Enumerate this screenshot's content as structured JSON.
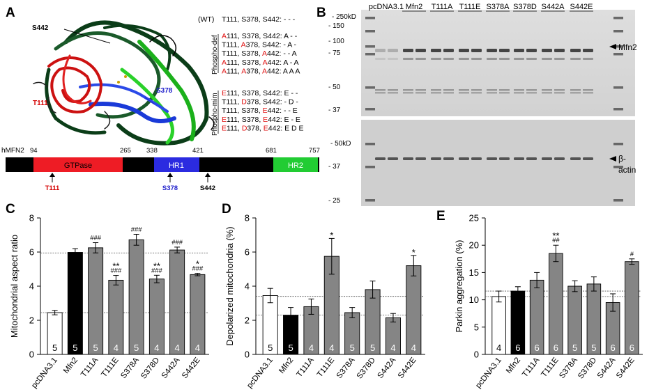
{
  "panelA": {
    "label": "A",
    "structure_labels": {
      "s442": "S442",
      "t111": "T111",
      "s378": "S378"
    },
    "wt": {
      "tag": "(WT)",
      "text": "T111, S378, S442: - - -"
    },
    "phospho_def": {
      "group_label": "Phospho-def",
      "rows": [
        [
          [
            "A",
            "r"
          ],
          [
            "111, S378, S442: A - -",
            "k"
          ]
        ],
        [
          [
            "T111, ",
            "k"
          ],
          [
            "A",
            "r"
          ],
          [
            "378, S442: - A -",
            "k"
          ]
        ],
        [
          [
            "T111, S378, ",
            "k"
          ],
          [
            "A",
            "r"
          ],
          [
            "442: - - A",
            "k"
          ]
        ],
        [
          [
            "A",
            "r"
          ],
          [
            "111, S378, ",
            "k"
          ],
          [
            "A",
            "r"
          ],
          [
            "442: A - A",
            "k"
          ]
        ],
        [
          [
            "A",
            "r"
          ],
          [
            "111, ",
            "k"
          ],
          [
            "A",
            "r"
          ],
          [
            "378, ",
            "k"
          ],
          [
            "A",
            "r"
          ],
          [
            "442: A A A",
            "k"
          ]
        ]
      ]
    },
    "phospho_mim": {
      "group_label": "Phospho-mim",
      "rows": [
        [
          [
            "E",
            "r"
          ],
          [
            "111, S378, S442: E - -",
            "k"
          ]
        ],
        [
          [
            "T111, ",
            "k"
          ],
          [
            "D",
            "r"
          ],
          [
            "378, S442: - D -",
            "k"
          ]
        ],
        [
          [
            "T111, S378, ",
            "k"
          ],
          [
            "E",
            "r"
          ],
          [
            "442: - - E",
            "k"
          ]
        ],
        [
          [
            "E",
            "r"
          ],
          [
            "111, S378, ",
            "k"
          ],
          [
            "E",
            "r"
          ],
          [
            "442: E - E",
            "k"
          ]
        ],
        [
          [
            "E",
            "r"
          ],
          [
            "111, ",
            "k"
          ],
          [
            "D",
            "r"
          ],
          [
            "378, ",
            "k"
          ],
          [
            "E",
            "r"
          ],
          [
            "442: E D E",
            "k"
          ]
        ]
      ]
    },
    "domain_map": {
      "protein": "hMFN2",
      "positions": [
        "94",
        "265",
        "338",
        "421",
        "681",
        "757"
      ],
      "domains": [
        {
          "name": "GTPase",
          "color": "#ee1c25"
        },
        {
          "name": "HR1",
          "color": "#2b2be0"
        },
        {
          "name": "HR2",
          "color": "#22cc33"
        }
      ],
      "sites": [
        "T111",
        "S378",
        "S442"
      ],
      "site_colors": [
        "#d40000",
        "#2222cc",
        "#000000"
      ]
    }
  },
  "panelB": {
    "label": "B",
    "lanes": [
      "pcDNA3.1",
      "Mfn2",
      "T111A",
      "T111E",
      "S378A",
      "S378D",
      "S442A",
      "S442E"
    ],
    "markers_top": [
      "250kD",
      "150",
      "100",
      "75",
      "50",
      "37"
    ],
    "markers_bottom": [
      "50kD",
      "37",
      "25"
    ],
    "band_top": "Mfn2",
    "band_bottom_line1": "β-",
    "band_bottom_line2": "actin"
  },
  "chart_data": [
    {
      "panel": "C",
      "type": "bar",
      "title": "",
      "ylabel": "Mitochondrial aspect ratio",
      "ylim": [
        0,
        8
      ],
      "yticks": [
        "0",
        "2",
        "4",
        "6",
        "8"
      ],
      "categories": [
        "pcDNA3.1",
        "Mfn2",
        "T111A",
        "T111E",
        "S378A",
        "S378D",
        "S442A",
        "S442E"
      ],
      "values": [
        2.45,
        5.98,
        6.25,
        4.35,
        6.72,
        4.42,
        6.12,
        4.68
      ],
      "errors": [
        0.13,
        0.22,
        0.3,
        0.28,
        0.32,
        0.22,
        0.17,
        0.07
      ],
      "n": [
        "5",
        "5",
        "5",
        "4",
        "5",
        "4",
        "4",
        "4"
      ],
      "sig_star": [
        "",
        "",
        "",
        "**",
        "",
        "**",
        "",
        "*"
      ],
      "sig_hash": [
        "",
        "",
        "###",
        "###",
        "###",
        "###",
        "###",
        "###"
      ],
      "reference_lines": [
        2.45,
        5.95
      ],
      "fills": [
        "#ffffff",
        "#000000",
        "#858585",
        "#858585",
        "#858585",
        "#858585",
        "#858585",
        "#858585"
      ]
    },
    {
      "panel": "D",
      "type": "bar",
      "title": "",
      "ylabel": "Depolarized mitochondria (%)",
      "ylim": [
        0,
        8
      ],
      "yticks": [
        "0",
        "2",
        "4",
        "6",
        "8"
      ],
      "categories": [
        "pcDNA3.1",
        "Mfn2",
        "T111A",
        "T111E",
        "S378A",
        "S378D",
        "S442A",
        "S442E"
      ],
      "values": [
        3.45,
        2.3,
        2.8,
        5.75,
        2.45,
        3.8,
        2.15,
        5.2
      ],
      "errors": [
        0.42,
        0.45,
        0.45,
        1.05,
        0.3,
        0.5,
        0.25,
        0.6
      ],
      "n": [
        "5",
        "5",
        "4",
        "4",
        "5",
        "5",
        "4",
        "4"
      ],
      "sig_star": [
        "",
        "",
        "",
        "*",
        "",
        "",
        "",
        "*"
      ],
      "sig_hash": [
        "",
        "",
        "",
        "",
        "",
        "",
        "",
        ""
      ],
      "reference_lines": [
        2.3,
        3.4
      ],
      "fills": [
        "#ffffff",
        "#000000",
        "#858585",
        "#858585",
        "#858585",
        "#858585",
        "#858585",
        "#858585"
      ]
    },
    {
      "panel": "E",
      "type": "bar",
      "title": "",
      "ylabel": "Parkin aggregation (%)",
      "ylim": [
        0,
        25
      ],
      "yticks": [
        "0",
        "5",
        "10",
        "15",
        "20",
        "25"
      ],
      "categories": [
        "pcDNA3.1",
        "Mfn2",
        "T111A",
        "T111E",
        "S378A",
        "S378D",
        "S442A",
        "S442E"
      ],
      "values": [
        10.6,
        11.6,
        13.6,
        18.5,
        12.5,
        12.9,
        9.5,
        17.0
      ],
      "errors": [
        1.0,
        0.8,
        1.4,
        1.5,
        1.0,
        1.3,
        1.6,
        0.5
      ],
      "n": [
        "4",
        "6",
        "6",
        "6",
        "5",
        "5",
        "6",
        "6"
      ],
      "sig_star": [
        "",
        "",
        "",
        "**",
        "",
        "",
        "",
        ""
      ],
      "sig_hash": [
        "",
        "",
        "",
        "##",
        "",
        "",
        "",
        "#"
      ],
      "reference_lines": [
        10.6,
        11.6
      ],
      "fills": [
        "#ffffff",
        "#000000",
        "#858585",
        "#858585",
        "#858585",
        "#858585",
        "#858585",
        "#858585"
      ]
    }
  ]
}
